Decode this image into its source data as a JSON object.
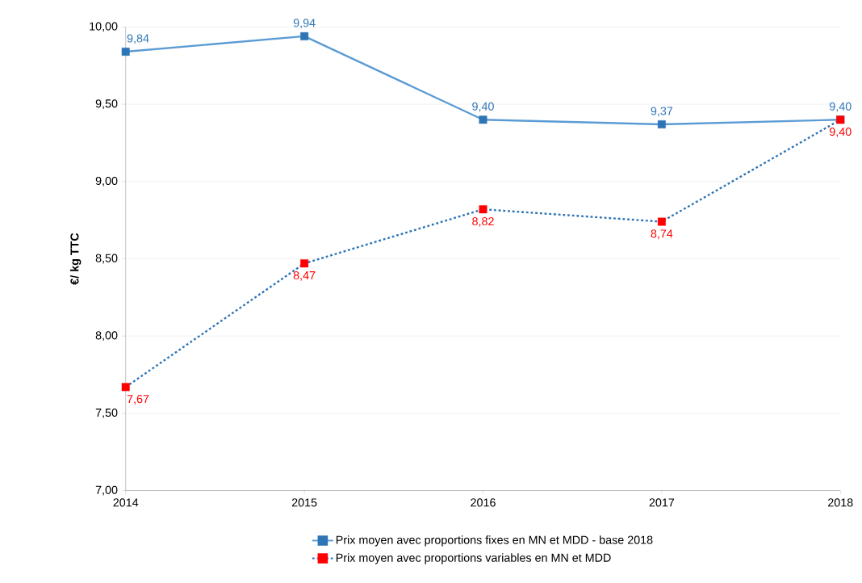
{
  "chart_data": {
    "type": "line",
    "ylabel": "€/ kg TTC",
    "x": [
      2014,
      2015,
      2016,
      2017,
      2018
    ],
    "xlim": [
      2014,
      2018
    ],
    "xticks": [
      2014,
      2015,
      2016,
      2017,
      2018
    ],
    "ylim": [
      7,
      10
    ],
    "yticks": [
      {
        "value": 7,
        "label": "7,00"
      },
      {
        "value": 7.5,
        "label": "7,50"
      },
      {
        "value": 8,
        "label": "8,00"
      },
      {
        "value": 8.5,
        "label": "8,50"
      },
      {
        "value": 9,
        "label": "9,00"
      },
      {
        "value": 9.5,
        "label": "9,50"
      },
      {
        "value": 10,
        "label": "10,00"
      }
    ],
    "grid": "y",
    "legend": "bottom",
    "marker": "square",
    "series": [
      {
        "name": "Prix moyen avec proportions fixes en MN et MDD - base 2018",
        "color": "#5b9bd5",
        "line_style": "solid",
        "colors": [
          "#2e75b6",
          "#2e75b6",
          "#2e75b6",
          "#2e75b6",
          "#2e75b6"
        ],
        "values": [
          9.84,
          9.94,
          9.4,
          9.37,
          9.4
        ],
        "value_labels": [
          "9,84",
          "9,94",
          "9,40",
          "9,37",
          "9,40"
        ]
      },
      {
        "name": "Prix moyen avec proportions variables en MN et MDD",
        "color": "#2e75b6",
        "line_style": "dashed",
        "colors": [
          "#ff0000",
          "#ff0000",
          "#ff0000",
          "#ff0000",
          "#ff0000"
        ],
        "values": [
          7.67,
          8.47,
          8.82,
          8.74,
          9.4
        ],
        "value_labels": [
          "7,67",
          "8,47",
          "8,82",
          "8,74",
          "9,40"
        ]
      }
    ]
  }
}
